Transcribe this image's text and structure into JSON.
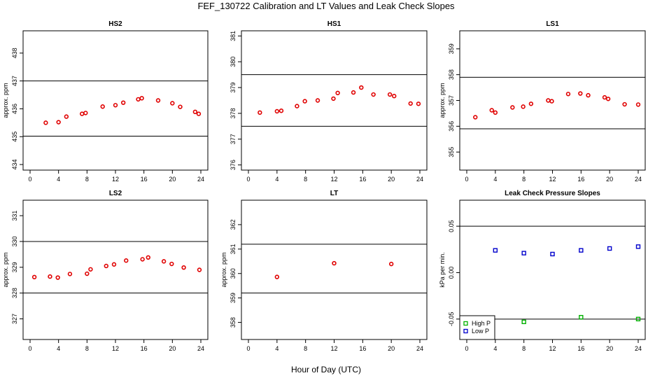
{
  "page": {
    "title": "FEF_130722  Calibration and LT Values and Leak Check Slopes",
    "xlabel": "Hour of Day (UTC)"
  },
  "chart_data": [
    {
      "type": "scatter",
      "title": "HS2",
      "ylabel": "approx. ppm",
      "xlim": [
        0,
        24
      ],
      "ylim": [
        433.8,
        438.8
      ],
      "xticks": [
        0,
        4,
        8,
        12,
        16,
        20,
        24
      ],
      "yticks": [
        434,
        435,
        436,
        437,
        438
      ],
      "hlines": [
        437.0,
        435.02
      ],
      "color": "#e00000",
      "series": [
        {
          "marker": "circle",
          "x": [
            2.2,
            4.0,
            5.1,
            7.3,
            7.8,
            10.2,
            12.0,
            13.1,
            15.2,
            15.7,
            18.0,
            20.0,
            21.1,
            23.2,
            23.7
          ],
          "y": [
            435.5,
            435.52,
            435.72,
            435.82,
            435.85,
            436.08,
            436.13,
            436.22,
            436.34,
            436.38,
            436.3,
            436.2,
            436.07,
            435.89,
            435.82
          ]
        }
      ]
    },
    {
      "type": "scatter",
      "title": "HS1",
      "ylabel": "",
      "xlim": [
        0,
        24
      ],
      "ylim": [
        375.8,
        381.2
      ],
      "xticks": [
        0,
        4,
        8,
        12,
        16,
        20,
        24
      ],
      "yticks": [
        376,
        377,
        378,
        379,
        380,
        381
      ],
      "hlines": [
        379.5,
        377.5
      ],
      "color": "#e00000",
      "series": [
        {
          "marker": "circle",
          "x": [
            1.6,
            4.0,
            4.6,
            6.8,
            7.9,
            9.7,
            11.9,
            12.5,
            14.7,
            15.8,
            17.5,
            19.8,
            20.4,
            22.7,
            23.8
          ],
          "y": [
            378.03,
            378.08,
            378.1,
            378.28,
            378.47,
            378.5,
            378.57,
            378.79,
            378.81,
            379.0,
            378.73,
            378.73,
            378.67,
            378.38,
            378.37
          ]
        }
      ]
    },
    {
      "type": "scatter",
      "title": "LS1",
      "ylabel": "approx. ppm",
      "xlim": [
        0,
        24
      ],
      "ylim": [
        354.3,
        359.7
      ],
      "xticks": [
        0,
        4,
        8,
        12,
        16,
        20,
        24
      ],
      "yticks": [
        355,
        356,
        357,
        358,
        359
      ],
      "hlines": [
        357.9,
        355.9
      ],
      "color": "#e00000",
      "series": [
        {
          "marker": "circle",
          "x": [
            1.2,
            3.5,
            4.0,
            6.4,
            7.9,
            9.0,
            11.4,
            11.9,
            14.2,
            15.9,
            17.0,
            19.3,
            19.8,
            22.1,
            24.0
          ],
          "y": [
            356.35,
            356.62,
            356.53,
            356.73,
            356.76,
            356.87,
            357.0,
            356.97,
            357.25,
            357.27,
            357.2,
            357.12,
            357.06,
            356.85,
            356.84
          ]
        }
      ]
    },
    {
      "type": "scatter",
      "title": "LS2",
      "ylabel": "approx. ppm",
      "xlim": [
        0,
        24
      ],
      "ylim": [
        326.2,
        331.6
      ],
      "xticks": [
        0,
        4,
        8,
        12,
        16,
        20,
        24
      ],
      "yticks": [
        327,
        328,
        329,
        330,
        331
      ],
      "hlines": [
        330.0,
        328.0
      ],
      "color": "#e00000",
      "series": [
        {
          "marker": "circle",
          "x": [
            0.6,
            2.8,
            3.9,
            5.6,
            8.0,
            8.5,
            10.7,
            11.8,
            13.5,
            15.8,
            16.6,
            18.8,
            19.9,
            21.6,
            23.8
          ],
          "y": [
            328.62,
            328.64,
            328.6,
            328.74,
            328.75,
            328.92,
            329.05,
            329.11,
            329.26,
            329.31,
            329.38,
            329.23,
            329.13,
            328.99,
            328.9
          ]
        }
      ]
    },
    {
      "type": "scatter",
      "title": "LT",
      "ylabel": "approx. ppm",
      "xlim": [
        0,
        24
      ],
      "ylim": [
        357.3,
        363.0
      ],
      "xticks": [
        0,
        4,
        8,
        12,
        16,
        20,
        24
      ],
      "yticks": [
        358,
        359,
        360,
        361,
        362
      ],
      "hlines": [
        361.2,
        359.2
      ],
      "color": "#e00000",
      "series": [
        {
          "marker": "circle",
          "x": [
            4.0,
            12.0,
            20.0
          ],
          "y": [
            359.86,
            360.42,
            360.39
          ]
        }
      ]
    },
    {
      "type": "scatter",
      "title": "Leak Check Pressure Slopes",
      "ylabel": "kPa per min.",
      "xlim": [
        0,
        24
      ],
      "ylim": [
        -0.072,
        0.078
      ],
      "xticks": [
        0,
        4,
        8,
        12,
        16,
        20,
        24
      ],
      "yticks": [
        -0.05,
        0.0,
        0.05
      ],
      "ytick_labels": [
        "-0.05",
        "0.00",
        "0.05"
      ],
      "hlines": [
        0.05,
        -0.05
      ],
      "legend": {
        "position": "bottom-left"
      },
      "series": [
        {
          "name": "High P",
          "color": "#00b000",
          "marker": "square",
          "x": [
            8.0,
            16.0,
            24.0
          ],
          "y": [
            -0.053,
            -0.048,
            -0.05
          ]
        },
        {
          "name": "Low P",
          "color": "#0000cc",
          "marker": "square",
          "x": [
            4.0,
            8.0,
            12.0,
            16.0,
            20.0,
            24.0
          ],
          "y": [
            0.024,
            0.021,
            0.02,
            0.024,
            0.026,
            0.028
          ]
        }
      ]
    }
  ]
}
